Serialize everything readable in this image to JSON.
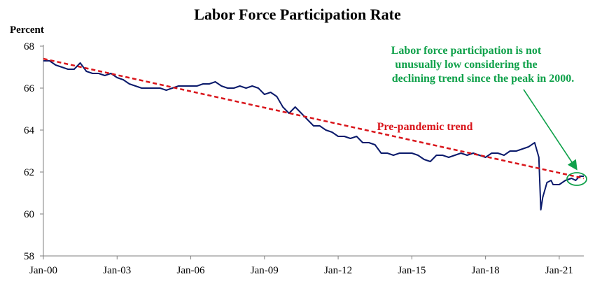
{
  "chart_data": {
    "type": "line",
    "title": "Labor Force Participation Rate",
    "ylabel": "Percent",
    "xlabel": "",
    "ylim": [
      58,
      68
    ],
    "xlim": [
      2000.0,
      2022.0
    ],
    "yticks": [
      58,
      60,
      62,
      64,
      66,
      68
    ],
    "xticks": [
      {
        "label": "Jan-00",
        "value": 2000
      },
      {
        "label": "Jan-03",
        "value": 2003
      },
      {
        "label": "Jan-06",
        "value": 2006
      },
      {
        "label": "Jan-09",
        "value": 2009
      },
      {
        "label": "Jan-12",
        "value": 2012
      },
      {
        "label": "Jan-15",
        "value": 2015
      },
      {
        "label": "Jan-18",
        "value": 2018
      },
      {
        "label": "Jan-21",
        "value": 2021
      }
    ],
    "grid": false,
    "series": [
      {
        "style": "solid",
        "color": "#0a1a6b",
        "points": [
          [
            2000.0,
            67.3
          ],
          [
            2000.25,
            67.3
          ],
          [
            2000.5,
            67.1
          ],
          [
            2000.75,
            67.0
          ],
          [
            2001.0,
            66.9
          ],
          [
            2001.25,
            66.9
          ],
          [
            2001.5,
            67.2
          ],
          [
            2001.75,
            66.8
          ],
          [
            2002.0,
            66.7
          ],
          [
            2002.25,
            66.7
          ],
          [
            2002.5,
            66.6
          ],
          [
            2002.75,
            66.7
          ],
          [
            2003.0,
            66.5
          ],
          [
            2003.25,
            66.4
          ],
          [
            2003.5,
            66.2
          ],
          [
            2003.75,
            66.1
          ],
          [
            2004.0,
            66.0
          ],
          [
            2004.25,
            66.0
          ],
          [
            2004.5,
            66.0
          ],
          [
            2004.75,
            66.0
          ],
          [
            2005.0,
            65.9
          ],
          [
            2005.25,
            66.0
          ],
          [
            2005.5,
            66.1
          ],
          [
            2005.75,
            66.1
          ],
          [
            2006.0,
            66.1
          ],
          [
            2006.25,
            66.1
          ],
          [
            2006.5,
            66.2
          ],
          [
            2006.75,
            66.2
          ],
          [
            2007.0,
            66.3
          ],
          [
            2007.25,
            66.1
          ],
          [
            2007.5,
            66.0
          ],
          [
            2007.75,
            66.0
          ],
          [
            2008.0,
            66.1
          ],
          [
            2008.25,
            66.0
          ],
          [
            2008.5,
            66.1
          ],
          [
            2008.75,
            66.0
          ],
          [
            2009.0,
            65.7
          ],
          [
            2009.25,
            65.8
          ],
          [
            2009.5,
            65.6
          ],
          [
            2009.75,
            65.1
          ],
          [
            2010.0,
            64.8
          ],
          [
            2010.25,
            65.1
          ],
          [
            2010.5,
            64.8
          ],
          [
            2010.75,
            64.5
          ],
          [
            2011.0,
            64.2
          ],
          [
            2011.25,
            64.2
          ],
          [
            2011.5,
            64.0
          ],
          [
            2011.75,
            63.9
          ],
          [
            2012.0,
            63.7
          ],
          [
            2012.25,
            63.7
          ],
          [
            2012.5,
            63.6
          ],
          [
            2012.75,
            63.7
          ],
          [
            2013.0,
            63.4
          ],
          [
            2013.25,
            63.4
          ],
          [
            2013.5,
            63.3
          ],
          [
            2013.75,
            62.9
          ],
          [
            2014.0,
            62.9
          ],
          [
            2014.25,
            62.8
          ],
          [
            2014.5,
            62.9
          ],
          [
            2014.75,
            62.9
          ],
          [
            2015.0,
            62.9
          ],
          [
            2015.25,
            62.8
          ],
          [
            2015.5,
            62.6
          ],
          [
            2015.75,
            62.5
          ],
          [
            2016.0,
            62.8
          ],
          [
            2016.25,
            62.8
          ],
          [
            2016.5,
            62.7
          ],
          [
            2016.75,
            62.8
          ],
          [
            2017.0,
            62.9
          ],
          [
            2017.25,
            62.8
          ],
          [
            2017.5,
            62.9
          ],
          [
            2017.75,
            62.8
          ],
          [
            2018.0,
            62.7
          ],
          [
            2018.25,
            62.9
          ],
          [
            2018.5,
            62.9
          ],
          [
            2018.75,
            62.8
          ],
          [
            2019.0,
            63.0
          ],
          [
            2019.25,
            63.0
          ],
          [
            2019.5,
            63.1
          ],
          [
            2019.75,
            63.2
          ],
          [
            2020.0,
            63.4
          ],
          [
            2020.17,
            62.7
          ],
          [
            2020.25,
            60.2
          ],
          [
            2020.33,
            60.8
          ],
          [
            2020.5,
            61.5
          ],
          [
            2020.67,
            61.6
          ],
          [
            2020.75,
            61.4
          ],
          [
            2021.0,
            61.4
          ],
          [
            2021.25,
            61.6
          ],
          [
            2021.5,
            61.7
          ],
          [
            2021.67,
            61.6
          ],
          [
            2021.83,
            61.8
          ],
          [
            2022.0,
            61.8
          ]
        ]
      },
      {
        "style": "dashed",
        "color": "#d9151b",
        "points": [
          [
            2000.0,
            67.4
          ],
          [
            2022.0,
            61.7
          ]
        ]
      }
    ],
    "annotations": {
      "note_lines": [
        "Labor force participation is not",
        "unusually low considering the",
        "declining trend since the peak in 2000."
      ],
      "trend_label": "Pre-pandemic trend"
    }
  },
  "colors": {
    "line": "#0a1a6b",
    "trend": "#d9151b",
    "note": "#0fa14a",
    "axis": "#7f7f7f"
  }
}
